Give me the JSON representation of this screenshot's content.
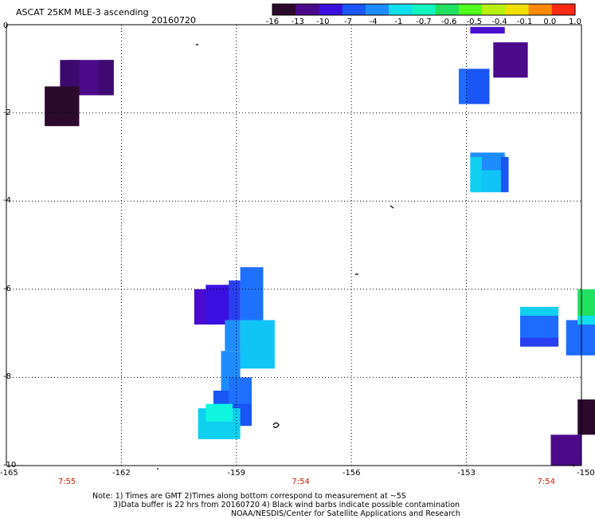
{
  "chart_data": {
    "type": "heatmap",
    "title": "ASCAT 25KM MLE-3 ascending",
    "date": "20160720",
    "xlim": [
      -165,
      -150
    ],
    "ylim": [
      -10,
      0
    ],
    "x_ticks": [
      "-165",
      "-162",
      "-159",
      "-156",
      "-153",
      "-150"
    ],
    "y_ticks": [
      "0",
      "-2",
      "-4",
      "-6",
      "-8",
      "-10"
    ],
    "time_labels": [
      {
        "x": -164.9,
        "text": "7:55"
      },
      {
        "x": -158.8,
        "text": "7:54"
      },
      {
        "x": -152.4,
        "text": "7:54"
      }
    ],
    "colorbar": {
      "labels": [
        "-16",
        "-13",
        "-10",
        "-7",
        "-4",
        "-1",
        "-0.7",
        "-0.6",
        "-0.5",
        "-0.4",
        "-0.1",
        "0.0",
        "1.0"
      ],
      "colors": [
        "#2b0a2e",
        "#4a0a8a",
        "#3a10e0",
        "#1a55f5",
        "#1e8cff",
        "#10e0f0",
        "#10f5c0",
        "#20e060",
        "#50ff20",
        "#b8f010",
        "#f0e000",
        "#ff8a00",
        "#ff2a10"
      ]
    },
    "cells": [
      {
        "x0": -163.4,
        "x1": -162.2,
        "y0": -1.6,
        "y1": -0.8,
        "color": "#4a0a8a"
      },
      {
        "x0": -163.6,
        "x1": -163.1,
        "y0": -1.6,
        "y1": -0.8,
        "color": "#3c0a6e"
      },
      {
        "x0": -162.6,
        "x1": -162.2,
        "y0": -1.6,
        "y1": -0.8,
        "color": "#3e0a72"
      },
      {
        "x0": -164.0,
        "x1": -163.1,
        "y0": -2.3,
        "y1": -1.4,
        "color": "#2b0a2e"
      },
      {
        "x0": -152.3,
        "x1": -151.4,
        "y0": -1.2,
        "y1": -0.4,
        "color": "#4a0a8a"
      },
      {
        "x0": -153.2,
        "x1": -152.4,
        "y0": -1.8,
        "y1": -1.0,
        "color": "#1a55f5"
      },
      {
        "x0": -153.2,
        "x1": -153.0,
        "y0": -1.8,
        "y1": -1.0,
        "color": "#1e6cff"
      },
      {
        "x0": -152.9,
        "x1": -152.0,
        "y0": -0.2,
        "y1": -0.05,
        "color": "#4a10d0"
      },
      {
        "x0": -152.9,
        "x1": -152.0,
        "y0": -3.3,
        "y1": -2.9,
        "color": "#1e8cff"
      },
      {
        "x0": -152.9,
        "x1": -152.0,
        "y0": -3.8,
        "y1": -3.3,
        "color": "#10c4f5"
      },
      {
        "x0": -152.9,
        "x1": -152.6,
        "y0": -3.8,
        "y1": -3.0,
        "color": "#10d0f0"
      },
      {
        "x0": -152.1,
        "x1": -151.9,
        "y0": -3.8,
        "y1": -3.0,
        "color": "#1a55f5"
      },
      {
        "x0": -160.1,
        "x1": -159.4,
        "y0": -6.8,
        "y1": -6.0,
        "color": "#4a0ad0"
      },
      {
        "x0": -159.8,
        "x1": -159.1,
        "y0": -6.8,
        "y1": -5.9,
        "color": "#3a10e0"
      },
      {
        "x0": -159.2,
        "x1": -158.9,
        "y0": -6.7,
        "y1": -5.8,
        "color": "#2a40f0"
      },
      {
        "x0": -158.9,
        "x1": -158.3,
        "y0": -6.7,
        "y1": -5.5,
        "color": "#1e70ff"
      },
      {
        "x0": -159.3,
        "x1": -158.9,
        "y0": -7.4,
        "y1": -6.7,
        "color": "#1e8cff"
      },
      {
        "x0": -158.9,
        "x1": -158.0,
        "y0": -7.8,
        "y1": -6.7,
        "color": "#10c4f5"
      },
      {
        "x0": -159.4,
        "x1": -158.9,
        "y0": -8.3,
        "y1": -7.4,
        "color": "#1e8cff"
      },
      {
        "x0": -159.6,
        "x1": -158.6,
        "y0": -9.1,
        "y1": -8.3,
        "color": "#1a55f5"
      },
      {
        "x0": -159.2,
        "x1": -158.6,
        "y0": -8.6,
        "y1": -8.0,
        "color": "#1e70ff"
      },
      {
        "x0": -160.0,
        "x1": -158.9,
        "y0": -9.4,
        "y1": -8.7,
        "color": "#10d0f0"
      },
      {
        "x0": -159.8,
        "x1": -159.1,
        "y0": -9.0,
        "y1": -8.6,
        "color": "#10f5e0"
      },
      {
        "x0": -151.6,
        "x1": -150.6,
        "y0": -7.3,
        "y1": -6.4,
        "color": "#1e6cff"
      },
      {
        "x0": -151.6,
        "x1": -150.6,
        "y0": -7.3,
        "y1": -7.1,
        "color": "#2a40f0"
      },
      {
        "x0": -151.6,
        "x1": -150.6,
        "y0": -6.6,
        "y1": -6.4,
        "color": "#10d0f0"
      },
      {
        "x0": -150.4,
        "x1": -149.6,
        "y0": -7.5,
        "y1": -6.7,
        "color": "#1e6cff"
      },
      {
        "x0": -150.1,
        "x1": -149.4,
        "y0": -6.8,
        "y1": -6.0,
        "color": "#20e060"
      },
      {
        "x0": -150.1,
        "x1": -149.4,
        "y0": -6.8,
        "y1": -6.6,
        "color": "#10e0f0"
      },
      {
        "x0": -150.1,
        "x1": -149.4,
        "y0": -9.3,
        "y1": -8.5,
        "color": "#2b0a2e"
      },
      {
        "x0": -150.8,
        "x1": -150.0,
        "y0": -10.0,
        "y1": -9.3,
        "color": "#4a0a8a"
      }
    ]
  },
  "notes": {
    "line1": "Note: 1) Times are GMT 2)Times along bottom correspond to measurement at ~5S",
    "line2": "3)Data buffer is 22 hrs from 20160720 4) Black wind barbs indicate possible contamination",
    "line3": "NOAA/NESDIS/Center for Satellite Applications and Research"
  }
}
